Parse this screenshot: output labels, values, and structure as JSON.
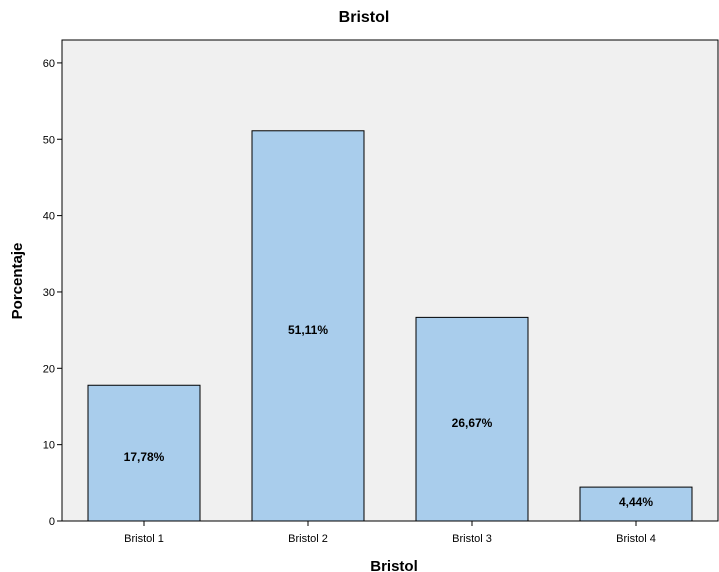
{
  "chart_data": {
    "type": "bar",
    "title": "Bristol",
    "xlabel": "Bristol",
    "ylabel": "Porcentaje",
    "categories": [
      "Bristol 1",
      "Bristol 2",
      "Bristol 3",
      "Bristol 4"
    ],
    "values": [
      17.78,
      51.11,
      26.67,
      4.44
    ],
    "data_labels": [
      "17,78%",
      "51,11%",
      "26,67%",
      "4,44%"
    ],
    "ylim": [
      0,
      63
    ],
    "yticks": [
      "0",
      "10",
      "20",
      "30",
      "40",
      "50",
      "60"
    ],
    "bar_color": "#a9cdec",
    "plot_background": "#f0f0f0",
    "grid": false,
    "legend": "none"
  }
}
